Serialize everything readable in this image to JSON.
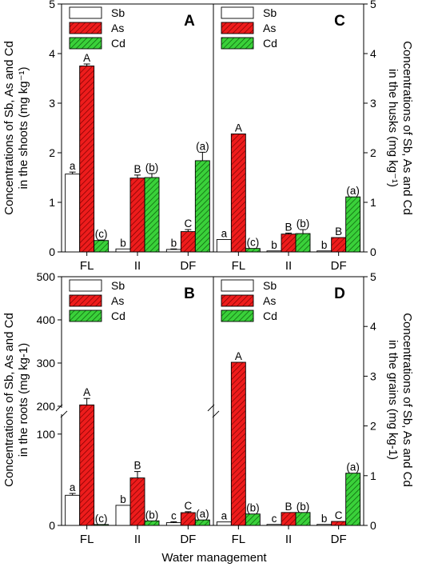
{
  "colors": {
    "sb": "#ffffff",
    "as": "#ee1c1c",
    "cd": "#3ad13a",
    "axis": "#000000"
  },
  "xlabel": "Water management",
  "legend": [
    "Sb",
    "As",
    "Cd"
  ],
  "ylabels": {
    "shoots": [
      "Concentrations of Sb, As and Cd",
      "in the shoots (mg kg⁻¹)"
    ],
    "husks": [
      "Concentrations of Sb, As and Cd",
      "in the husks (mg kg⁻¹)"
    ],
    "roots": [
      "Concentrations of Sb, As and Cd",
      "in the roots (mg kg-1)"
    ],
    "grains": [
      "Concentrations of Sb, As and Cd",
      "in the grains (mg kg-1)"
    ]
  },
  "chart_data": [
    {
      "type": "bar",
      "panel": "A",
      "ylabel": "Concentrations of Sb, As and Cd in the shoots (mg kg-1)",
      "categories": [
        "FL",
        "II",
        "DF"
      ],
      "ylim": [
        0,
        5
      ],
      "yticks": [
        0,
        1,
        2,
        3,
        4,
        5
      ],
      "series": [
        {
          "name": "Sb",
          "values": [
            1.57,
            0.06,
            0.05
          ],
          "err": [
            0.04,
            0,
            0.01
          ],
          "letters": [
            "a",
            "b",
            "b"
          ]
        },
        {
          "name": "As",
          "values": [
            3.75,
            1.49,
            0.41
          ],
          "err": [
            0.04,
            0.06,
            0.04
          ],
          "letters": [
            "A",
            "B",
            "C"
          ]
        },
        {
          "name": "Cd",
          "values": [
            0.23,
            1.5,
            1.84
          ],
          "err": [
            0.01,
            0.08,
            0.17
          ],
          "letters": [
            "(c)",
            "(b)",
            "(a)"
          ]
        }
      ]
    },
    {
      "type": "bar",
      "panel": "C",
      "ylabel": "Concentrations of Sb, As and Cd in the husks (mg kg-1)",
      "categories": [
        "FL",
        "II",
        "DF"
      ],
      "ylim": [
        0,
        5
      ],
      "yticks": [
        0,
        1,
        2,
        3,
        4,
        5
      ],
      "series": [
        {
          "name": "Sb",
          "values": [
            0.25,
            0.02,
            0.02
          ],
          "err": [
            0,
            0,
            0
          ],
          "letters": [
            "a",
            "b",
            "b"
          ]
        },
        {
          "name": "As",
          "values": [
            2.38,
            0.36,
            0.29
          ],
          "err": [
            0,
            0.02,
            0
          ],
          "letters": [
            "A",
            "B",
            "B"
          ]
        },
        {
          "name": "Cd",
          "values": [
            0.07,
            0.37,
            1.11
          ],
          "err": [
            0,
            0.08,
            0
          ],
          "letters": [
            "(c)",
            "(b)",
            "(a)"
          ]
        }
      ]
    },
    {
      "type": "bar",
      "panel": "B",
      "ylabel": "Concentrations of Sb, As and Cd in the roots (mg kg-1)",
      "categories": [
        "FL",
        "II",
        "DF"
      ],
      "axis_break": [
        120,
        200
      ],
      "ylim": [
        0,
        500
      ],
      "yticks": [
        0,
        100,
        200,
        300,
        400,
        500
      ],
      "series": [
        {
          "name": "Sb",
          "values": [
            33,
            22,
            3
          ],
          "err": [
            2,
            0,
            1
          ],
          "letters": [
            "a",
            "b",
            "c"
          ]
        },
        {
          "name": "As",
          "values": [
            203,
            52,
            14
          ],
          "err": [
            15,
            7,
            1
          ],
          "letters": [
            "A",
            "B",
            "C"
          ]
        },
        {
          "name": "Cd",
          "values": [
            1,
            5,
            6
          ],
          "err": [
            0,
            0,
            0
          ],
          "letters": [
            "(c)",
            "(b)",
            "(a)"
          ]
        }
      ]
    },
    {
      "type": "bar",
      "panel": "D",
      "ylabel": "Concentrations of Sb, As and Cd in the grains (mg kg-1)",
      "categories": [
        "FL",
        "II",
        "DF"
      ],
      "ylim": [
        0,
        5
      ],
      "yticks": [
        0,
        1,
        2,
        3,
        4,
        5
      ],
      "series": [
        {
          "name": "Sb",
          "values": [
            0.07,
            0.02,
            0.02
          ],
          "err": [
            0,
            0,
            0
          ],
          "letters": [
            "a",
            "c",
            "b"
          ]
        },
        {
          "name": "As",
          "values": [
            3.28,
            0.26,
            0.08
          ],
          "err": [
            0,
            0,
            0
          ],
          "letters": [
            "A",
            "B",
            "C"
          ]
        },
        {
          "name": "Cd",
          "values": [
            0.23,
            0.26,
            1.05
          ],
          "err": [
            0,
            0,
            0
          ],
          "letters": [
            "(b)",
            "(b)",
            "(a)"
          ]
        }
      ]
    }
  ]
}
